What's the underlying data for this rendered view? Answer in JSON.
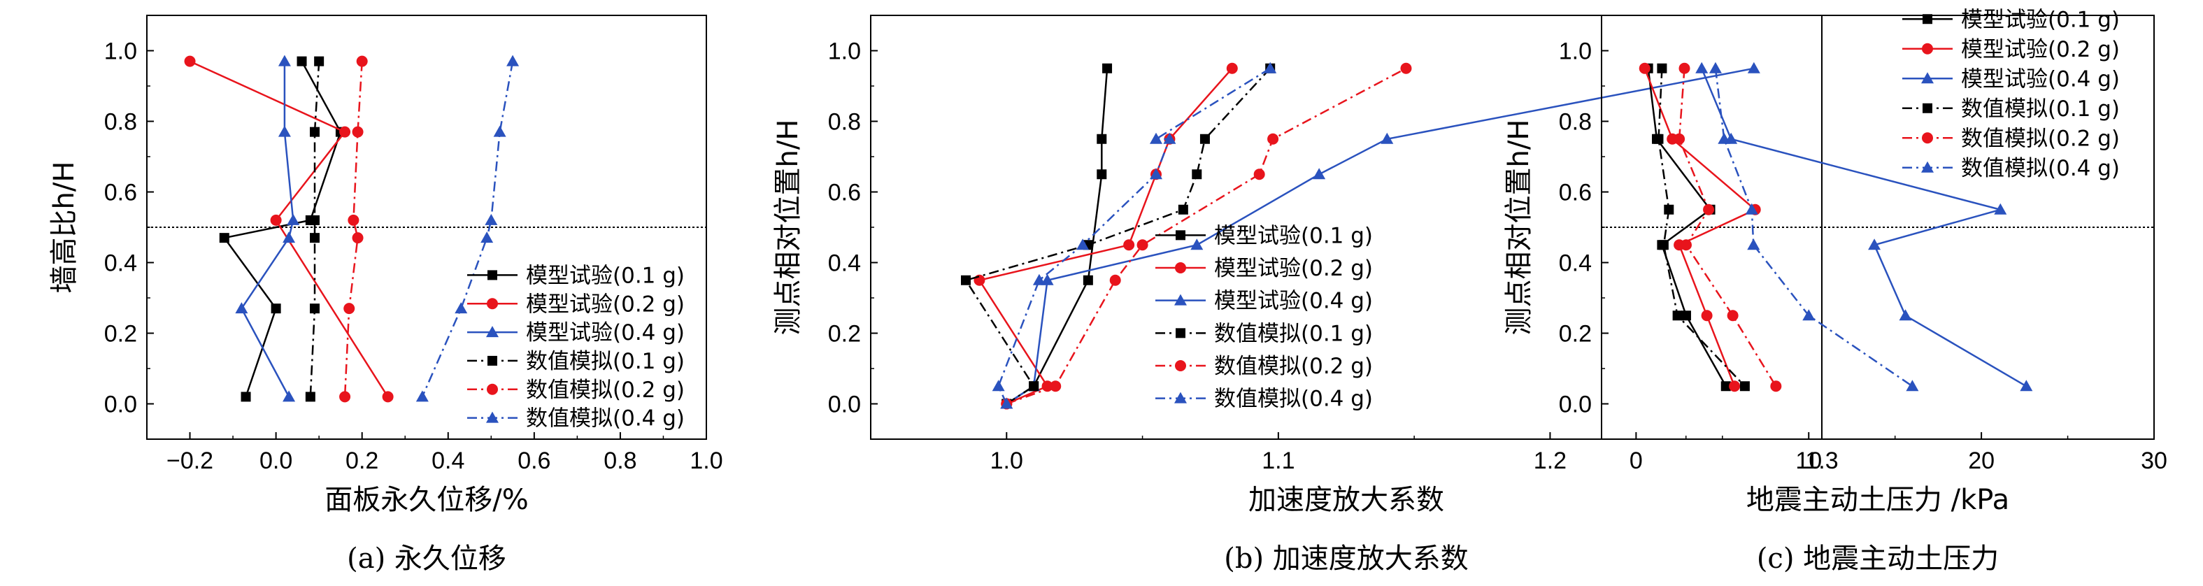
{
  "chart_data": [
    {
      "type": "line",
      "caption": "(a) 永久位移",
      "xlabel": "面板永久位移/%",
      "ylabel": "墙高比h/H",
      "xlim": [
        -0.3,
        1.0
      ],
      "ylim": [
        -0.1,
        1.1
      ],
      "xticks": [
        "−0.2",
        "0.0",
        "0.2",
        "0.4",
        "0.6",
        "0.8",
        "1.0"
      ],
      "yticks": [
        "0.0",
        "0.2",
        "0.4",
        "0.6",
        "0.8",
        "1.0"
      ],
      "xtick_values": [
        -0.2,
        0.0,
        0.2,
        0.4,
        0.6,
        0.8,
        1.0
      ],
      "ytick_values": [
        0.0,
        0.2,
        0.4,
        0.6,
        0.8,
        1.0
      ],
      "reference_line_y": 0.5,
      "legend": {
        "placement": "bottom-right",
        "entries": [
          "模型试验(0.1 g)",
          "模型试验(0.2 g)",
          "模型试验(0.4 g)",
          "数值模拟(0.1 g)",
          "数值模拟(0.2 g)",
          "数值模拟(0.4 g)"
        ]
      },
      "series": [
        {
          "name": "模型试验(0.1 g)",
          "color": "#000000",
          "marker": "square",
          "dash": "solid",
          "x": [
            0.06,
            0.15,
            0.08,
            -0.12,
            0.0,
            -0.07
          ],
          "y": [
            0.97,
            0.77,
            0.52,
            0.47,
            0.27,
            0.02
          ]
        },
        {
          "name": "模型试验(0.2 g)",
          "color": "#e8141c",
          "marker": "circle",
          "dash": "solid",
          "x": [
            -0.2,
            0.16,
            0.0,
            0.26
          ],
          "y": [
            0.97,
            0.77,
            0.52,
            0.02
          ]
        },
        {
          "name": "模型试验(0.4 g)",
          "color": "#2a52be",
          "marker": "triangle",
          "dash": "solid",
          "x": [
            0.02,
            0.02,
            0.04,
            0.03,
            -0.08,
            0.03
          ],
          "y": [
            0.97,
            0.77,
            0.52,
            0.47,
            0.27,
            0.02
          ]
        },
        {
          "name": "数值模拟(0.1 g)",
          "color": "#000000",
          "marker": "square",
          "dash": "dashdot",
          "x": [
            0.1,
            0.09,
            0.09,
            0.09,
            0.09,
            0.08
          ],
          "y": [
            0.97,
            0.77,
            0.52,
            0.47,
            0.27,
            0.02
          ]
        },
        {
          "name": "数值模拟(0.2 g)",
          "color": "#e8141c",
          "marker": "circle",
          "dash": "dashdot",
          "x": [
            0.2,
            0.19,
            0.18,
            0.19,
            0.17,
            0.16
          ],
          "y": [
            0.97,
            0.77,
            0.52,
            0.47,
            0.27,
            0.02
          ]
        },
        {
          "name": "数值模拟(0.4 g)",
          "color": "#2a52be",
          "marker": "triangle",
          "dash": "dashdot",
          "x": [
            0.55,
            0.52,
            0.5,
            0.49,
            0.43,
            0.34
          ],
          "y": [
            0.97,
            0.77,
            0.52,
            0.47,
            0.27,
            0.02
          ]
        }
      ]
    },
    {
      "type": "line",
      "caption": "(b) 加速度放大系数",
      "xlabel": "加速度放大系数",
      "ylabel": "测点相对位置h/H",
      "xlim": [
        0.95,
        1.3
      ],
      "ylim": [
        -0.1,
        1.1
      ],
      "xticks": [
        "1.0",
        "1.1",
        "1.2",
        "1.3"
      ],
      "yticks": [
        "0.0",
        "0.2",
        "0.4",
        "0.6",
        "0.8",
        "1.0"
      ],
      "xtick_values": [
        1.0,
        1.1,
        1.2,
        1.3
      ],
      "ytick_values": [
        0.0,
        0.2,
        0.4,
        0.6,
        0.8,
        1.0
      ],
      "reference_line_y": null,
      "legend": {
        "placement": "bottom-right",
        "entries": [
          "模型试验(0.1 g)",
          "模型试验(0.2 g)",
          "模型试验(0.4 g)",
          "数值模拟(0.1 g)",
          "数值模拟(0.2 g)",
          "数值模拟(0.4 g)"
        ]
      },
      "series": [
        {
          "name": "模型试验(0.1 g)",
          "color": "#000000",
          "marker": "square",
          "dash": "solid",
          "x": [
            1.0,
            1.01,
            1.03,
            1.035,
            1.035,
            1.037
          ],
          "y": [
            0.0,
            0.05,
            0.35,
            0.65,
            0.75,
            0.95
          ]
        },
        {
          "name": "模型试验(0.2 g)",
          "color": "#e8141c",
          "marker": "circle",
          "dash": "solid",
          "x": [
            1.0,
            1.015,
            0.99,
            1.045,
            1.055,
            1.06,
            1.083
          ],
          "y": [
            0.0,
            0.05,
            0.35,
            0.45,
            0.65,
            0.75,
            0.95
          ]
        },
        {
          "name": "模型试验(0.4 g)",
          "color": "#2a52be",
          "marker": "triangle",
          "dash": "solid",
          "x": [
            1.0,
            1.01,
            1.015,
            1.07,
            1.115,
            1.14,
            1.275
          ],
          "y": [
            0.0,
            0.05,
            0.35,
            0.45,
            0.65,
            0.75,
            0.95
          ]
        },
        {
          "name": "数值模拟(0.1 g)",
          "color": "#000000",
          "marker": "square",
          "dash": "dashdot",
          "x": [
            1.0,
            1.01,
            0.985,
            1.03,
            1.065,
            1.07,
            1.073,
            1.097
          ],
          "y": [
            0.0,
            0.05,
            0.35,
            0.45,
            0.55,
            0.65,
            0.75,
            0.95
          ]
        },
        {
          "name": "数值模拟(0.2 g)",
          "color": "#e8141c",
          "marker": "circle",
          "dash": "dashdot",
          "x": [
            1.0,
            1.018,
            1.04,
            1.05,
            1.093,
            1.098,
            1.147
          ],
          "y": [
            0.0,
            0.05,
            0.35,
            0.45,
            0.65,
            0.75,
            0.95
          ]
        },
        {
          "name": "数值模拟(0.4 g)",
          "color": "#2a52be",
          "marker": "triangle",
          "dash": "dashdot",
          "x": [
            1.0,
            0.997,
            1.012,
            1.028,
            1.055,
            1.06,
            1.055,
            1.097
          ],
          "y": [
            0.0,
            0.05,
            0.35,
            0.45,
            0.65,
            0.75,
            0.75,
            0.95
          ]
        }
      ]
    },
    {
      "type": "line",
      "caption": "(c) 地震主动土压力",
      "xlabel": "地震主动土压力 /kPa",
      "ylabel": "测点相对位置h/H",
      "xlim": [
        -2,
        30
      ],
      "ylim": [
        -0.1,
        1.1
      ],
      "xticks": [
        "0",
        "10",
        "20",
        "30"
      ],
      "yticks": [
        "0.0",
        "0.2",
        "0.4",
        "0.6",
        "0.8",
        "1.0"
      ],
      "xtick_values": [
        0,
        10,
        20,
        30
      ],
      "ytick_values": [
        0.0,
        0.2,
        0.4,
        0.6,
        0.8,
        1.0
      ],
      "reference_line_y": 0.5,
      "legend": {
        "placement": "top-right",
        "entries": [
          "模型试验(0.1 g)",
          "模型试验(0.2 g)",
          "模型试验(0.4 g)",
          "数值模拟(0.1 g)",
          "数值模拟(0.2 g)",
          "数值模拟(0.4 g)"
        ]
      },
      "series": [
        {
          "name": "模型试验(0.1 g)",
          "color": "#000000",
          "marker": "square",
          "dash": "solid",
          "x": [
            0.7,
            1.2,
            4.3,
            1.5,
            2.9,
            5.2
          ],
          "y": [
            0.95,
            0.75,
            0.55,
            0.45,
            0.25,
            0.05
          ]
        },
        {
          "name": "模型试验(0.2 g)",
          "color": "#e8141c",
          "marker": "circle",
          "dash": "solid",
          "x": [
            0.5,
            2.1,
            6.9,
            2.5,
            4.1,
            5.7
          ],
          "y": [
            0.95,
            0.75,
            0.55,
            0.45,
            0.25,
            0.05
          ]
        },
        {
          "name": "模型试验(0.4 g)",
          "color": "#2a52be",
          "marker": "triangle",
          "dash": "solid",
          "x": [
            3.8,
            5.5,
            21.1,
            13.8,
            15.6,
            22.6
          ],
          "y": [
            0.95,
            0.75,
            0.55,
            0.45,
            0.25,
            0.05
          ]
        },
        {
          "name": "数值模拟(0.1 g)",
          "color": "#000000",
          "marker": "square",
          "dash": "dashdot",
          "x": [
            1.5,
            1.3,
            1.9,
            1.6,
            2.4,
            6.3
          ],
          "y": [
            0.95,
            0.75,
            0.55,
            0.45,
            0.25,
            0.05
          ]
        },
        {
          "name": "数值模拟(0.2 g)",
          "color": "#e8141c",
          "marker": "circle",
          "dash": "dashdot",
          "x": [
            2.8,
            2.5,
            4.2,
            2.9,
            5.6,
            8.1
          ],
          "y": [
            0.95,
            0.75,
            0.55,
            0.45,
            0.25,
            0.05
          ]
        },
        {
          "name": "数值模拟(0.4 g)",
          "color": "#2a52be",
          "marker": "triangle",
          "dash": "dashdot",
          "x": [
            4.6,
            5.1,
            6.7,
            6.8,
            10.0,
            16.0
          ],
          "y": [
            0.95,
            0.75,
            0.55,
            0.45,
            0.25,
            0.05
          ]
        }
      ]
    }
  ]
}
